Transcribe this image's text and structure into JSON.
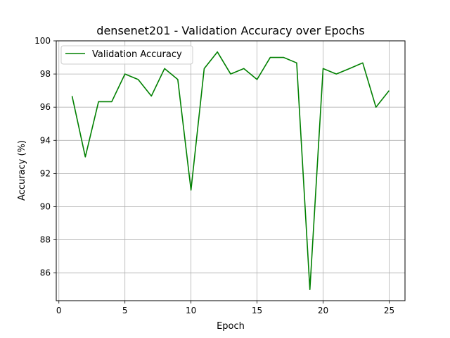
{
  "chart_data": {
    "type": "line",
    "title": "densenet201 - Validation Accuracy over Epochs",
    "xlabel": "Epoch",
    "ylabel": "Accuracy (%)",
    "xlim": [
      -0.2,
      26.2
    ],
    "ylim": [
      84.33,
      100
    ],
    "xticks": [
      0,
      5,
      10,
      15,
      20,
      25
    ],
    "yticks": [
      86,
      88,
      90,
      92,
      94,
      96,
      98,
      100
    ],
    "grid": true,
    "legend_position": "top-left",
    "series": [
      {
        "name": "Validation Accuracy",
        "color": "#008000",
        "x": [
          1,
          2,
          3,
          4,
          5,
          6,
          7,
          8,
          9,
          10,
          11,
          12,
          13,
          14,
          15,
          16,
          17,
          18,
          19,
          20,
          21,
          22,
          23,
          24,
          25
        ],
        "y": [
          96.67,
          93.0,
          96.33,
          96.33,
          98.0,
          97.67,
          96.67,
          98.33,
          97.67,
          91.0,
          98.33,
          99.33,
          98.0,
          98.33,
          97.67,
          99.0,
          99.0,
          98.67,
          85.0,
          98.33,
          98.0,
          98.33,
          98.67,
          96.0,
          97.0
        ]
      }
    ]
  }
}
